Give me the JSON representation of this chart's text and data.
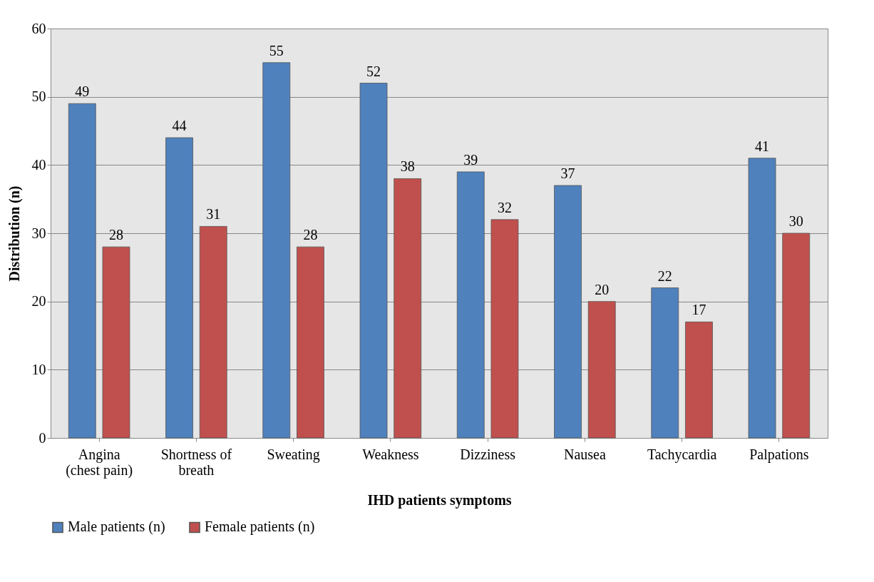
{
  "chart_data": {
    "type": "bar",
    "xlabel": "IHD patients symptoms",
    "ylabel": "Distribution (n)",
    "categories": [
      "Angina (chest pain)",
      "Shortness of breath",
      "Sweating",
      "Weakness",
      "Dizziness",
      "Nausea",
      "Tachycardia",
      "Palpations"
    ],
    "series": [
      {
        "name": "Male patients (n)",
        "color": "#4f81bd",
        "values": [
          49,
          44,
          55,
          52,
          39,
          37,
          22,
          41
        ]
      },
      {
        "name": "Female patients (n)",
        "color": "#c0504d",
        "values": [
          28,
          31,
          28,
          38,
          32,
          20,
          17,
          30
        ]
      }
    ],
    "ylim": [
      0,
      60
    ],
    "yticks": [
      0,
      10,
      20,
      30,
      40,
      50,
      60
    ],
    "grid": "y",
    "legend": "bottom",
    "data_labels": true
  }
}
